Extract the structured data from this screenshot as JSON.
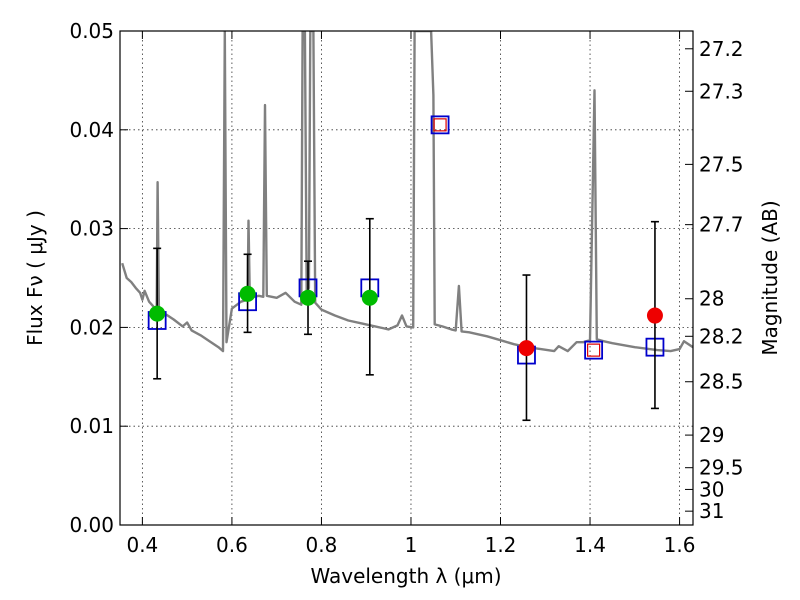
{
  "chart_data": {
    "type": "scatter",
    "xlabel": "Wavelength  λ (μm)",
    "ylabel": "Flux  Fν  ( μJy )",
    "y2label": "Magnitude (AB)",
    "xlim": [
      0.35,
      1.63
    ],
    "ylim": [
      0.0,
      0.05
    ],
    "x_ticks": [
      0.4,
      0.6,
      0.8,
      1.0,
      1.2,
      1.4,
      1.6
    ],
    "x_tick_labels": [
      "0.4",
      "0.6",
      "0.8",
      "1",
      "1.2",
      "1.4",
      "1.6"
    ],
    "y_ticks": [
      0.0,
      0.01,
      0.02,
      0.03,
      0.04,
      0.05
    ],
    "y_tick_labels": [
      "0.00",
      "0.01",
      "0.02",
      "0.03",
      "0.04",
      "0.05"
    ],
    "y2_ticks": [
      {
        "label": "27.2",
        "flux": 0.0482
      },
      {
        "label": "27.3",
        "flux": 0.0439
      },
      {
        "label": "27.5",
        "flux": 0.0365
      },
      {
        "label": "27.7",
        "flux": 0.0304
      },
      {
        "label": "28",
        "flux": 0.0229
      },
      {
        "label": "28.2",
        "flux": 0.0191
      },
      {
        "label": "28.5",
        "flux": 0.0145
      },
      {
        "label": "29",
        "flux": 0.0091
      },
      {
        "label": "29.5",
        "flux": 0.0058
      },
      {
        "label": "30",
        "flux": 0.0036
      },
      {
        "label": "31",
        "flux": 0.0014
      }
    ],
    "grid": true,
    "series": [
      {
        "kind": "line",
        "color": "#808080",
        "points": [
          [
            0.355,
            0.0265
          ],
          [
            0.365,
            0.025
          ],
          [
            0.375,
            0.0246
          ],
          [
            0.385,
            0.024
          ],
          [
            0.395,
            0.0235
          ],
          [
            0.4,
            0.0228
          ],
          [
            0.405,
            0.0237
          ],
          [
            0.415,
            0.0226
          ],
          [
            0.425,
            0.0221
          ],
          [
            0.432,
            0.0218
          ],
          [
            0.434,
            0.0347
          ],
          [
            0.437,
            0.0218
          ],
          [
            0.45,
            0.0214
          ],
          [
            0.47,
            0.0208
          ],
          [
            0.49,
            0.0201
          ],
          [
            0.5,
            0.0205
          ],
          [
            0.51,
            0.0197
          ],
          [
            0.53,
            0.0192
          ],
          [
            0.55,
            0.0186
          ],
          [
            0.57,
            0.018
          ],
          [
            0.58,
            0.0176
          ],
          [
            0.584,
            0.05
          ],
          [
            0.588,
            0.0185
          ],
          [
            0.6,
            0.0219
          ],
          [
            0.62,
            0.0226
          ],
          [
            0.635,
            0.0228
          ],
          [
            0.637,
            0.0308
          ],
          [
            0.64,
            0.023
          ],
          [
            0.66,
            0.0232
          ],
          [
            0.67,
            0.0231
          ],
          [
            0.674,
            0.0425
          ],
          [
            0.678,
            0.0232
          ],
          [
            0.7,
            0.023
          ],
          [
            0.72,
            0.0235
          ],
          [
            0.74,
            0.0226
          ],
          [
            0.755,
            0.0223
          ],
          [
            0.758,
            0.05
          ],
          [
            0.763,
            0.05
          ],
          [
            0.767,
            0.0235
          ],
          [
            0.772,
            0.024
          ],
          [
            0.775,
            0.05
          ],
          [
            0.782,
            0.05
          ],
          [
            0.786,
            0.0225
          ],
          [
            0.8,
            0.0218
          ],
          [
            0.83,
            0.0212
          ],
          [
            0.86,
            0.0207
          ],
          [
            0.89,
            0.0204
          ],
          [
            0.92,
            0.0201
          ],
          [
            0.95,
            0.0198
          ],
          [
            0.97,
            0.0202
          ],
          [
            0.98,
            0.0212
          ],
          [
            0.99,
            0.0201
          ],
          [
            1.005,
            0.02
          ],
          [
            1.008,
            0.05
          ],
          [
            1.035,
            0.05
          ],
          [
            1.045,
            0.05
          ],
          [
            1.05,
            0.0435
          ],
          [
            1.053,
            0.0203
          ],
          [
            1.07,
            0.0201
          ],
          [
            1.09,
            0.0198
          ],
          [
            1.1,
            0.0197
          ],
          [
            1.107,
            0.0242
          ],
          [
            1.113,
            0.0196
          ],
          [
            1.13,
            0.0195
          ],
          [
            1.15,
            0.0193
          ],
          [
            1.17,
            0.0191
          ],
          [
            1.2,
            0.0187
          ],
          [
            1.23,
            0.0183
          ],
          [
            1.26,
            0.018
          ],
          [
            1.29,
            0.0178
          ],
          [
            1.32,
            0.0176
          ],
          [
            1.33,
            0.0181
          ],
          [
            1.35,
            0.0176
          ],
          [
            1.37,
            0.0185
          ],
          [
            1.385,
            0.0185
          ],
          [
            1.4,
            0.0187
          ],
          [
            1.41,
            0.044
          ],
          [
            1.415,
            0.0188
          ],
          [
            1.43,
            0.0186
          ],
          [
            1.45,
            0.0184
          ],
          [
            1.5,
            0.018
          ],
          [
            1.55,
            0.0177
          ],
          [
            1.58,
            0.0176
          ],
          [
            1.6,
            0.0178
          ],
          [
            1.61,
            0.0186
          ],
          [
            1.62,
            0.0183
          ],
          [
            1.63,
            0.018
          ]
        ]
      },
      {
        "kind": "squares",
        "name": "model points",
        "color": "#0000cc",
        "points": [
          [
            0.433,
            0.0207
          ],
          [
            0.635,
            0.0226
          ],
          [
            0.77,
            0.024
          ],
          [
            0.908,
            0.024
          ],
          [
            1.065,
            0.0405
          ],
          [
            1.258,
            0.0172
          ],
          [
            1.408,
            0.0177
          ],
          [
            1.545,
            0.018
          ]
        ]
      },
      {
        "kind": "squares-small",
        "name": "inner squares",
        "color": "#dd0000",
        "points": [
          [
            1.065,
            0.0405
          ],
          [
            1.408,
            0.0177
          ]
        ]
      },
      {
        "kind": "errorbars",
        "color": "#000000",
        "points": [
          [
            0.433,
            0.0214,
            0.0148,
            0.028
          ],
          [
            0.635,
            0.0234,
            0.0195,
            0.0274
          ],
          [
            0.77,
            0.023,
            0.0193,
            0.0267
          ],
          [
            0.908,
            0.023,
            0.0152,
            0.031
          ],
          [
            1.258,
            0.0179,
            0.0106,
            0.0253
          ],
          [
            1.545,
            0.0212,
            0.0118,
            0.0307
          ]
        ]
      },
      {
        "kind": "circles",
        "name": "green points",
        "color": "#00bb00",
        "points": [
          [
            0.433,
            0.0214
          ],
          [
            0.635,
            0.0234
          ],
          [
            0.77,
            0.023
          ],
          [
            0.908,
            0.023
          ]
        ]
      },
      {
        "kind": "circles",
        "name": "red points",
        "color": "#ee0000",
        "points": [
          [
            1.258,
            0.0179
          ],
          [
            1.545,
            0.0212
          ]
        ]
      }
    ]
  }
}
